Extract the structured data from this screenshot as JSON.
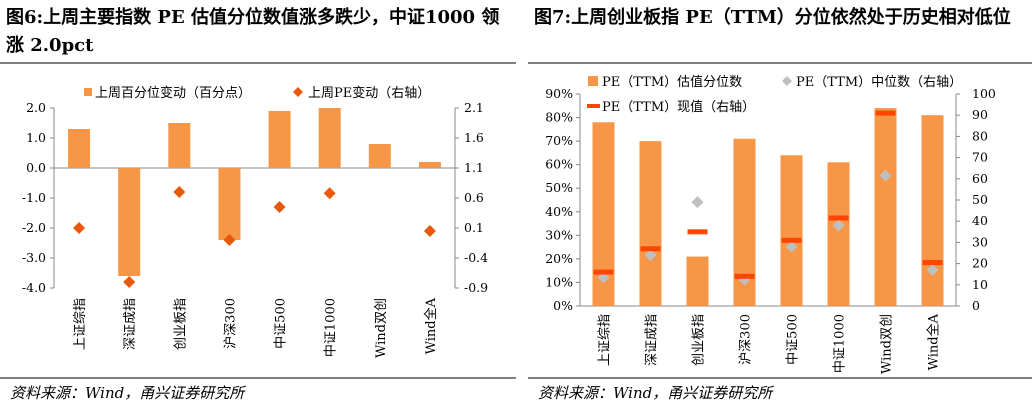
{
  "left": {
    "title": "图6:上周主要指数 PE 估值分位数值涨多跌少，中证1000 领涨 2.0pct",
    "source": "资料来源：Wind，甬兴证券研究所"
  },
  "right": {
    "title": "图7:上周创业板指 PE（TTM）分位依然处于历史相对低位",
    "source": "资料来源：Wind，甬兴证券研究所"
  },
  "chart_data": [
    {
      "type": "bar",
      "categories": [
        "上证综指",
        "深证成指",
        "创业板指",
        "沪深300",
        "中证500",
        "中证1000",
        "Wind双创",
        "Wind全A"
      ],
      "series": [
        {
          "name": "上周百分位变动（百分点）",
          "kind": "bar",
          "axis": "left",
          "color": "#F79646",
          "values": [
            1.3,
            -3.6,
            1.5,
            -2.4,
            1.9,
            2.0,
            0.8,
            0.2
          ]
        },
        {
          "name": "上周PE变动（右轴）",
          "kind": "marker",
          "marker": "diamond",
          "axis": "right",
          "color": "#E8590C",
          "values": [
            0.1,
            -0.8,
            0.7,
            -0.1,
            0.45,
            0.68,
            null,
            0.05
          ]
        }
      ],
      "yleft": {
        "ylim": [
          -4.0,
          2.0
        ],
        "ticks": [
          "2.0",
          "1.0",
          "0.0",
          "-1.0",
          "-2.0",
          "-3.0",
          "-4.0"
        ]
      },
      "yright": {
        "ylim": [
          -0.9,
          2.1
        ],
        "ticks": [
          "2.1",
          "1.6",
          "1.1",
          "0.6",
          "0.1",
          "-0.4",
          "-0.9"
        ]
      },
      "legend": "top",
      "grid": false
    },
    {
      "type": "bar",
      "categories": [
        "上证综指",
        "深证成指",
        "创业板指",
        "沪深300",
        "中证500",
        "中证1000",
        "Wind双创",
        "Wind全A"
      ],
      "series": [
        {
          "name": "PE（TTM）估值分位数",
          "kind": "bar",
          "axis": "left",
          "color": "#F79646",
          "values": [
            0.78,
            0.7,
            0.21,
            0.71,
            0.64,
            0.61,
            0.84,
            0.81
          ]
        },
        {
          "name": "PE（TTM）中位数（右轴）",
          "kind": "marker",
          "marker": "diamond",
          "axis": "right",
          "color": "#BFBFBF",
          "values": [
            13.5,
            24,
            49,
            12.5,
            28,
            38,
            61.5,
            17
          ]
        },
        {
          "name": "PE（TTM）现值（右轴）",
          "kind": "dash",
          "axis": "right",
          "color": "#FF4500",
          "values": [
            16,
            27,
            35,
            14,
            31,
            41.5,
            91,
            20.5
          ]
        }
      ],
      "yleft": {
        "ylim": [
          0,
          0.9
        ],
        "ticks": [
          "90%",
          "80%",
          "70%",
          "60%",
          "50%",
          "40%",
          "30%",
          "20%",
          "10%",
          "0%"
        ]
      },
      "yright": {
        "ylim": [
          0,
          100
        ],
        "ticks": [
          "100",
          "90",
          "80",
          "70",
          "60",
          "50",
          "40",
          "30",
          "20",
          "10",
          "0"
        ]
      },
      "legend": "top-left",
      "grid": false
    }
  ]
}
